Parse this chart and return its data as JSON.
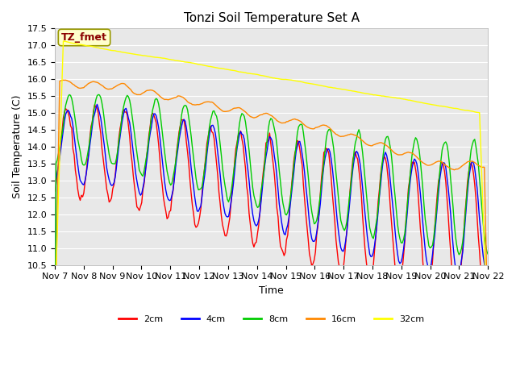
{
  "title": "Tonzi Soil Temperature Set A",
  "xlabel": "Time",
  "ylabel": "Soil Temperature (C)",
  "ylim": [
    10.5,
    17.5
  ],
  "annotation": "TZ_fmet",
  "x_tick_labels": [
    "Nov 7",
    "Nov 8",
    "Nov 9",
    "Nov 10",
    "Nov 11",
    "Nov 12",
    "Nov 13",
    "Nov 14",
    "Nov 15",
    "Nov 16",
    "Nov 17",
    "Nov 18",
    "Nov 19",
    "Nov 20",
    "Nov 21",
    "Nov 22"
  ],
  "line_colors": {
    "2cm": "#ff0000",
    "4cm": "#0000ff",
    "8cm": "#00cc00",
    "16cm": "#ff8800",
    "32cm": "#ffff00"
  },
  "bg_color": "#e8e8e8",
  "title_fontsize": 11,
  "axis_fontsize": 9,
  "tick_fontsize": 8
}
